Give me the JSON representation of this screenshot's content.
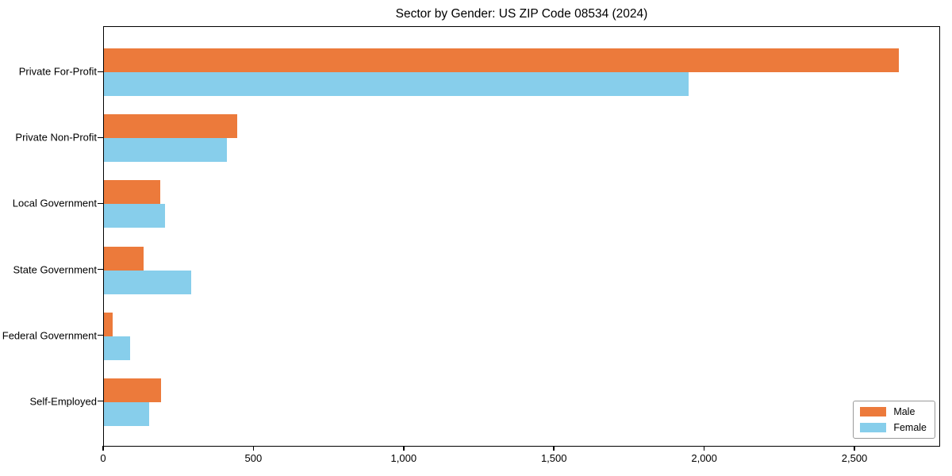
{
  "figure": {
    "background": "#ffffff"
  },
  "chart_data": {
    "type": "bar",
    "orientation": "horizontal",
    "title": "Sector by Gender: US ZIP Code 08534 (2024)",
    "categories": [
      "Private For-Profit",
      "Private Non-Profit",
      "Local Government",
      "State Government",
      "Federal Government",
      "Self-Employed"
    ],
    "series": [
      {
        "name": "Male",
        "color": "#EC7A3B",
        "values": [
          2650,
          445,
          187,
          133,
          30,
          190
        ]
      },
      {
        "name": "Female",
        "color": "#87CEEB",
        "values": [
          1950,
          410,
          204,
          290,
          88,
          150
        ]
      }
    ],
    "xlabel": "",
    "ylabel": "",
    "xlim": [
      0,
      2785
    ],
    "x_ticks": [
      0,
      500,
      1000,
      1500,
      2000,
      2500
    ],
    "x_tick_labels": [
      "0",
      "500",
      "1,000",
      "1,500",
      "2,000",
      "2,500"
    ],
    "legend": {
      "position": "lower-right",
      "entries": [
        "Male",
        "Female"
      ]
    },
    "grid": false,
    "axis_color": "#000000",
    "legend_border_color": "#999999"
  }
}
